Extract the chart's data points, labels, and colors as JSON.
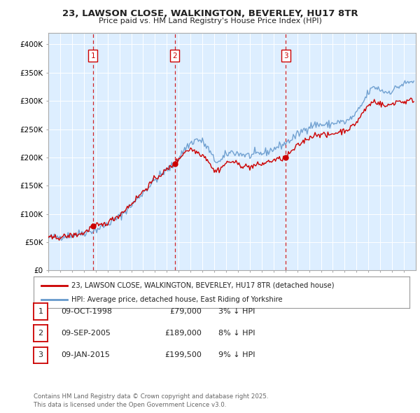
{
  "title_line1": "23, LAWSON CLOSE, WALKINGTON, BEVERLEY, HU17 8TR",
  "title_line2": "Price paid vs. HM Land Registry's House Price Index (HPI)",
  "background_color": "#ffffff",
  "chart_bg_color": "#ddeeff",
  "grid_color": "#ffffff",
  "hpi_color": "#6699cc",
  "price_color": "#cc0000",
  "yticks": [
    0,
    50000,
    100000,
    150000,
    200000,
    250000,
    300000,
    350000,
    400000
  ],
  "ytick_labels": [
    "£0",
    "£50K",
    "£100K",
    "£150K",
    "£200K",
    "£250K",
    "£300K",
    "£350K",
    "£400K"
  ],
  "xmin": 1995.0,
  "xmax": 2026.0,
  "ymin": 0,
  "ymax": 420000,
  "transactions": [
    {
      "date": 1998.77,
      "price": 79000,
      "label": "1"
    },
    {
      "date": 2005.68,
      "price": 189000,
      "label": "2"
    },
    {
      "date": 2015.03,
      "price": 199500,
      "label": "3"
    }
  ],
  "legend_house_label": "23, LAWSON CLOSE, WALKINGTON, BEVERLEY, HU17 8TR (detached house)",
  "legend_hpi_label": "HPI: Average price, detached house, East Riding of Yorkshire",
  "table_rows": [
    {
      "num": "1",
      "date": "09-OCT-1998",
      "price": "£79,000",
      "note": "3% ↓ HPI"
    },
    {
      "num": "2",
      "date": "09-SEP-2005",
      "price": "£189,000",
      "note": "8% ↓ HPI"
    },
    {
      "num": "3",
      "date": "09-JAN-2015",
      "price": "£199,500",
      "note": "9% ↓ HPI"
    }
  ],
  "footer": "Contains HM Land Registry data © Crown copyright and database right 2025.\nThis data is licensed under the Open Government Licence v3.0."
}
